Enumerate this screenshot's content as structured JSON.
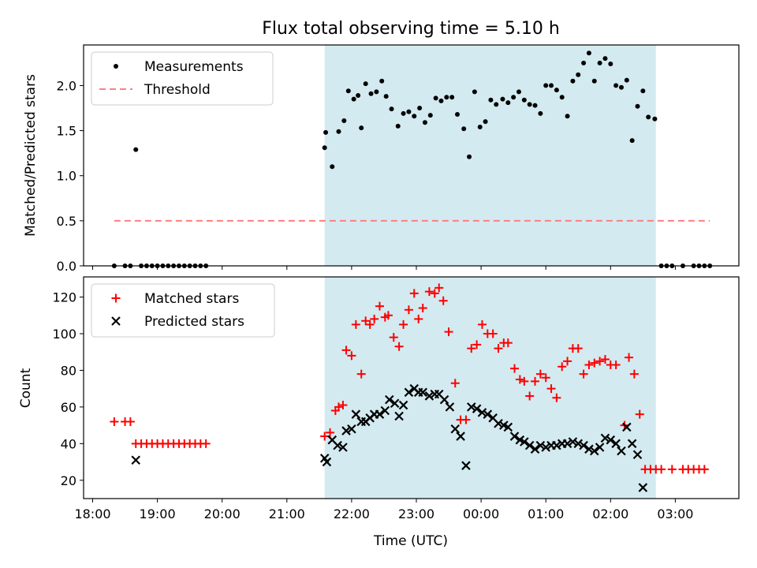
{
  "chart_data": [
    {
      "type": "scatter",
      "title": "Flux total observing time = 5.10 h",
      "xlabel": "",
      "ylabel": "Matched/Predicted stars",
      "ylim": [
        0,
        2.45
      ],
      "yticks": [
        "0.0",
        "0.5",
        "1.0",
        "1.5",
        "2.0"
      ],
      "yticks_values": [
        0,
        0.5,
        1.0,
        1.5,
        2.0
      ],
      "legend": {
        "placement": "top-left"
      },
      "shaded_interval": {
        "start": "21:35",
        "end": "02:42",
        "color": "#d3eaf0"
      },
      "series": [
        {
          "name": "Measurements",
          "color": "#000000",
          "marker": "dot",
          "points": [
            [
              "18:20",
              0
            ],
            [
              "18:30",
              0
            ],
            [
              "18:35",
              0
            ],
            [
              "18:40",
              1.29
            ],
            [
              "18:45",
              0
            ],
            [
              "18:50",
              0
            ],
            [
              "18:55",
              0
            ],
            [
              "19:00",
              0
            ],
            [
              "19:05",
              0
            ],
            [
              "19:10",
              0
            ],
            [
              "19:15",
              0
            ],
            [
              "19:20",
              0
            ],
            [
              "19:25",
              0
            ],
            [
              "19:30",
              0
            ],
            [
              "19:35",
              0
            ],
            [
              "19:40",
              0
            ],
            [
              "19:45",
              0
            ],
            [
              "21:35",
              1.31
            ],
            [
              "21:36",
              1.48
            ],
            [
              "21:42",
              1.1
            ],
            [
              "21:48",
              1.49
            ],
            [
              "21:53",
              1.61
            ],
            [
              "21:57",
              1.94
            ],
            [
              "22:02",
              1.85
            ],
            [
              "22:06",
              1.89
            ],
            [
              "22:09",
              1.53
            ],
            [
              "22:13",
              2.02
            ],
            [
              "22:18",
              1.91
            ],
            [
              "22:23",
              1.93
            ],
            [
              "22:28",
              2.05
            ],
            [
              "22:32",
              1.88
            ],
            [
              "22:37",
              1.74
            ],
            [
              "22:43",
              1.55
            ],
            [
              "22:48",
              1.69
            ],
            [
              "22:53",
              1.71
            ],
            [
              "22:58",
              1.66
            ],
            [
              "23:03",
              1.75
            ],
            [
              "23:08",
              1.59
            ],
            [
              "23:13",
              1.67
            ],
            [
              "23:18",
              1.86
            ],
            [
              "23:23",
              1.83
            ],
            [
              "23:28",
              1.87
            ],
            [
              "23:33",
              1.87
            ],
            [
              "23:38",
              1.68
            ],
            [
              "23:44",
              1.52
            ],
            [
              "23:49",
              1.21
            ],
            [
              "23:54",
              1.93
            ],
            [
              "23:59",
              1.54
            ],
            [
              "00:04",
              1.6
            ],
            [
              "00:09",
              1.84
            ],
            [
              "00:14",
              1.79
            ],
            [
              "00:20",
              1.85
            ],
            [
              "00:25",
              1.81
            ],
            [
              "00:30",
              1.87
            ],
            [
              "00:35",
              1.93
            ],
            [
              "00:40",
              1.84
            ],
            [
              "00:45",
              1.79
            ],
            [
              "00:50",
              1.78
            ],
            [
              "00:55",
              1.69
            ],
            [
              "01:00",
              2.0
            ],
            [
              "01:05",
              2.0
            ],
            [
              "01:10",
              1.95
            ],
            [
              "01:15",
              1.87
            ],
            [
              "01:20",
              1.66
            ],
            [
              "01:25",
              2.05
            ],
            [
              "01:30",
              2.12
            ],
            [
              "01:35",
              2.25
            ],
            [
              "01:40",
              2.36
            ],
            [
              "01:45",
              2.05
            ],
            [
              "01:50",
              2.25
            ],
            [
              "01:55",
              2.3
            ],
            [
              "02:00",
              2.24
            ],
            [
              "02:05",
              2.0
            ],
            [
              "02:10",
              1.98
            ],
            [
              "02:15",
              2.06
            ],
            [
              "02:20",
              1.39
            ],
            [
              "02:25",
              1.77
            ],
            [
              "02:30",
              1.94
            ],
            [
              "02:35",
              1.65
            ],
            [
              "02:41",
              1.63
            ],
            [
              "02:47",
              0
            ],
            [
              "02:52",
              0
            ],
            [
              "02:57",
              0
            ],
            [
              "03:07",
              0
            ],
            [
              "03:17",
              0
            ],
            [
              "03:22",
              0
            ],
            [
              "03:27",
              0
            ],
            [
              "03:32",
              0
            ]
          ]
        },
        {
          "name": "Threshold",
          "color": "#ff7f7f",
          "style": "dashed",
          "points": [
            [
              "18:20",
              0.5
            ],
            [
              "03:32",
              0.5
            ]
          ]
        }
      ]
    },
    {
      "type": "scatter",
      "title": "",
      "xlabel": "Time (UTC)",
      "ylabel": "Count",
      "ylim": [
        10,
        131
      ],
      "yticks": [
        "20",
        "40",
        "60",
        "80",
        "100",
        "120"
      ],
      "yticks_values": [
        20,
        40,
        60,
        80,
        100,
        120
      ],
      "xticks": [
        "18:00",
        "19:00",
        "20:00",
        "21:00",
        "22:00",
        "23:00",
        "00:00",
        "01:00",
        "02:00",
        "03:00"
      ],
      "legend": {
        "placement": "top-left"
      },
      "shaded_interval": {
        "start": "21:35",
        "end": "02:42",
        "color": "#d3eaf0"
      },
      "series": [
        {
          "name": "Matched stars",
          "color": "#ff0000",
          "marker": "plus",
          "points": [
            [
              "18:20",
              52
            ],
            [
              "18:30",
              52
            ],
            [
              "18:35",
              52
            ],
            [
              "18:40",
              40
            ],
            [
              "18:45",
              40
            ],
            [
              "18:50",
              40
            ],
            [
              "18:55",
              40
            ],
            [
              "19:00",
              40
            ],
            [
              "19:05",
              40
            ],
            [
              "19:10",
              40
            ],
            [
              "19:15",
              40
            ],
            [
              "19:20",
              40
            ],
            [
              "19:25",
              40
            ],
            [
              "19:30",
              40
            ],
            [
              "19:35",
              40
            ],
            [
              "19:40",
              40
            ],
            [
              "19:45",
              40
            ],
            [
              "21:35",
              44
            ],
            [
              "21:40",
              46
            ],
            [
              "21:45",
              58
            ],
            [
              "21:48",
              60
            ],
            [
              "21:52",
              61
            ],
            [
              "21:55",
              91
            ],
            [
              "22:00",
              88
            ],
            [
              "22:04",
              105
            ],
            [
              "22:09",
              78
            ],
            [
              "22:13",
              107
            ],
            [
              "22:17",
              105
            ],
            [
              "22:21",
              108
            ],
            [
              "22:26",
              115
            ],
            [
              "22:31",
              109
            ],
            [
              "22:34",
              110
            ],
            [
              "22:39",
              98
            ],
            [
              "22:44",
              93
            ],
            [
              "22:48",
              105
            ],
            [
              "22:53",
              113
            ],
            [
              "22:58",
              122
            ],
            [
              "23:02",
              108
            ],
            [
              "23:06",
              114
            ],
            [
              "23:12",
              123
            ],
            [
              "23:17",
              122
            ],
            [
              "23:21",
              125
            ],
            [
              "23:25",
              118
            ],
            [
              "23:30",
              101
            ],
            [
              "23:36",
              73
            ],
            [
              "23:41",
              53
            ],
            [
              "23:46",
              53
            ],
            [
              "23:51",
              92
            ],
            [
              "23:56",
              94
            ],
            [
              "00:01",
              105
            ],
            [
              "00:06",
              100
            ],
            [
              "00:11",
              100
            ],
            [
              "00:16",
              92
            ],
            [
              "00:21",
              95
            ],
            [
              "00:25",
              95
            ],
            [
              "00:31",
              81
            ],
            [
              "00:36",
              75
            ],
            [
              "00:40",
              74
            ],
            [
              "00:45",
              66
            ],
            [
              "00:50",
              74
            ],
            [
              "00:55",
              78
            ],
            [
              "01:00",
              76
            ],
            [
              "01:05",
              70
            ],
            [
              "01:10",
              65
            ],
            [
              "01:15",
              82
            ],
            [
              "01:20",
              85
            ],
            [
              "01:25",
              92
            ],
            [
              "01:30",
              92
            ],
            [
              "01:35",
              78
            ],
            [
              "01:40",
              83
            ],
            [
              "01:45",
              84
            ],
            [
              "01:50",
              85
            ],
            [
              "01:55",
              86
            ],
            [
              "02:00",
              83
            ],
            [
              "02:05",
              83
            ],
            [
              "02:13",
              50
            ],
            [
              "02:17",
              87
            ],
            [
              "02:22",
              78
            ],
            [
              "02:27",
              56
            ],
            [
              "02:32",
              26
            ],
            [
              "02:37",
              26
            ],
            [
              "02:42",
              26
            ],
            [
              "02:47",
              26
            ],
            [
              "02:57",
              26
            ],
            [
              "03:07",
              26
            ],
            [
              "03:12",
              26
            ],
            [
              "03:17",
              26
            ],
            [
              "03:22",
              26
            ],
            [
              "03:27",
              26
            ]
          ]
        },
        {
          "name": "Predicted stars",
          "color": "#000000",
          "marker": "x",
          "points": [
            [
              "18:40",
              31
            ],
            [
              "21:35",
              32
            ],
            [
              "21:37",
              30
            ],
            [
              "21:42",
              42
            ],
            [
              "21:47",
              39
            ],
            [
              "21:52",
              38
            ],
            [
              "21:55",
              47
            ],
            [
              "22:00",
              48
            ],
            [
              "22:04",
              56
            ],
            [
              "22:09",
              52
            ],
            [
              "22:13",
              52
            ],
            [
              "22:17",
              54
            ],
            [
              "22:21",
              56
            ],
            [
              "22:26",
              56
            ],
            [
              "22:31",
              58
            ],
            [
              "22:35",
              64
            ],
            [
              "22:40",
              62
            ],
            [
              "22:44",
              55
            ],
            [
              "22:48",
              61
            ],
            [
              "22:53",
              68
            ],
            [
              "22:58",
              70
            ],
            [
              "23:02",
              68
            ],
            [
              "23:06",
              68
            ],
            [
              "23:12",
              66
            ],
            [
              "23:17",
              67
            ],
            [
              "23:21",
              67
            ],
            [
              "23:26",
              64
            ],
            [
              "23:31",
              60
            ],
            [
              "23:36",
              48
            ],
            [
              "23:41",
              44
            ],
            [
              "23:46",
              28
            ],
            [
              "23:51",
              60
            ],
            [
              "23:56",
              59
            ],
            [
              "00:01",
              57
            ],
            [
              "00:06",
              56
            ],
            [
              "00:11",
              54
            ],
            [
              "00:16",
              51
            ],
            [
              "00:21",
              50
            ],
            [
              "00:25",
              49
            ],
            [
              "00:31",
              44
            ],
            [
              "00:36",
              42
            ],
            [
              "00:40",
              41
            ],
            [
              "00:45",
              39
            ],
            [
              "00:50",
              37
            ],
            [
              "00:55",
              39
            ],
            [
              "01:00",
              38
            ],
            [
              "01:05",
              39
            ],
            [
              "01:10",
              39
            ],
            [
              "01:15",
              40
            ],
            [
              "01:20",
              40
            ],
            [
              "01:25",
              41
            ],
            [
              "01:30",
              40
            ],
            [
              "01:35",
              39
            ],
            [
              "01:40",
              37
            ],
            [
              "01:45",
              36
            ],
            [
              "01:50",
              38
            ],
            [
              "01:55",
              43
            ],
            [
              "02:00",
              42
            ],
            [
              "02:05",
              40
            ],
            [
              "02:10",
              36
            ],
            [
              "02:15",
              49
            ],
            [
              "02:20",
              40
            ],
            [
              "02:25",
              34
            ],
            [
              "02:30",
              16
            ]
          ]
        }
      ]
    }
  ]
}
